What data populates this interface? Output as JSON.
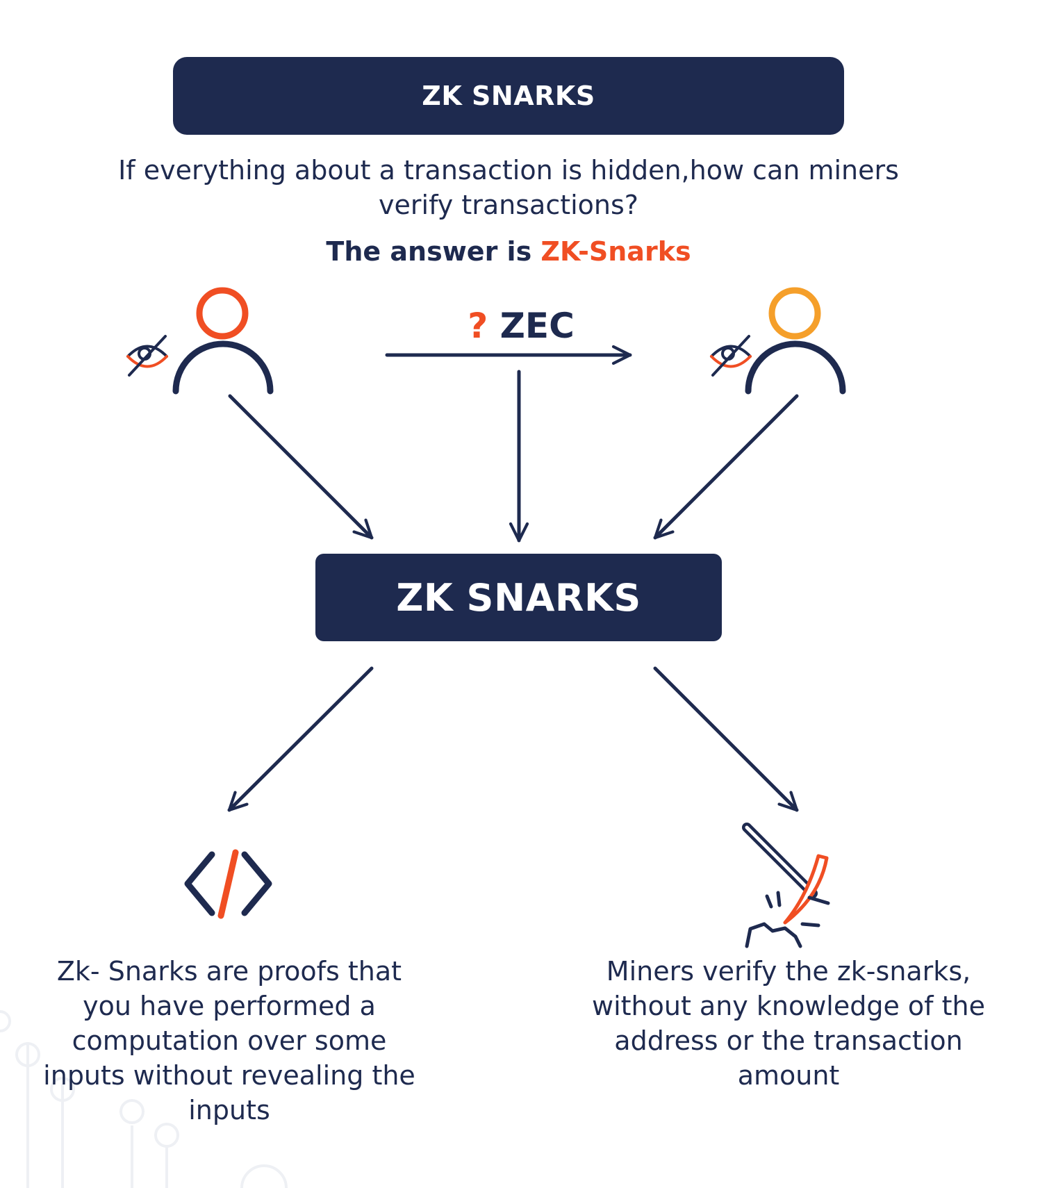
{
  "header": {
    "title": "ZK SNARKS"
  },
  "intro": {
    "question": "If everything about a transaction is hidden,how can miners verify transactions?",
    "answer_prefix": "The answer is",
    "answer_highlight": "ZK-Snarks"
  },
  "transfer": {
    "question_mark": "?",
    "currency": "ZEC"
  },
  "center": {
    "label": "ZK SNARKS"
  },
  "outcomes": {
    "left_text": "Zk- Snarks are proofs that you have performed a computation over some inputs without revealing the inputs",
    "right_text": "Miners verify the zk-snarks, without any knowledge of the address or the transaction amount"
  },
  "colors": {
    "navy": "#1e2a4f",
    "red_orange": "#f04e23",
    "orange": "#f59f2a"
  },
  "icons": [
    "hidden-eye-icon",
    "person-icon",
    "code-icon",
    "pickaxe-icon"
  ]
}
